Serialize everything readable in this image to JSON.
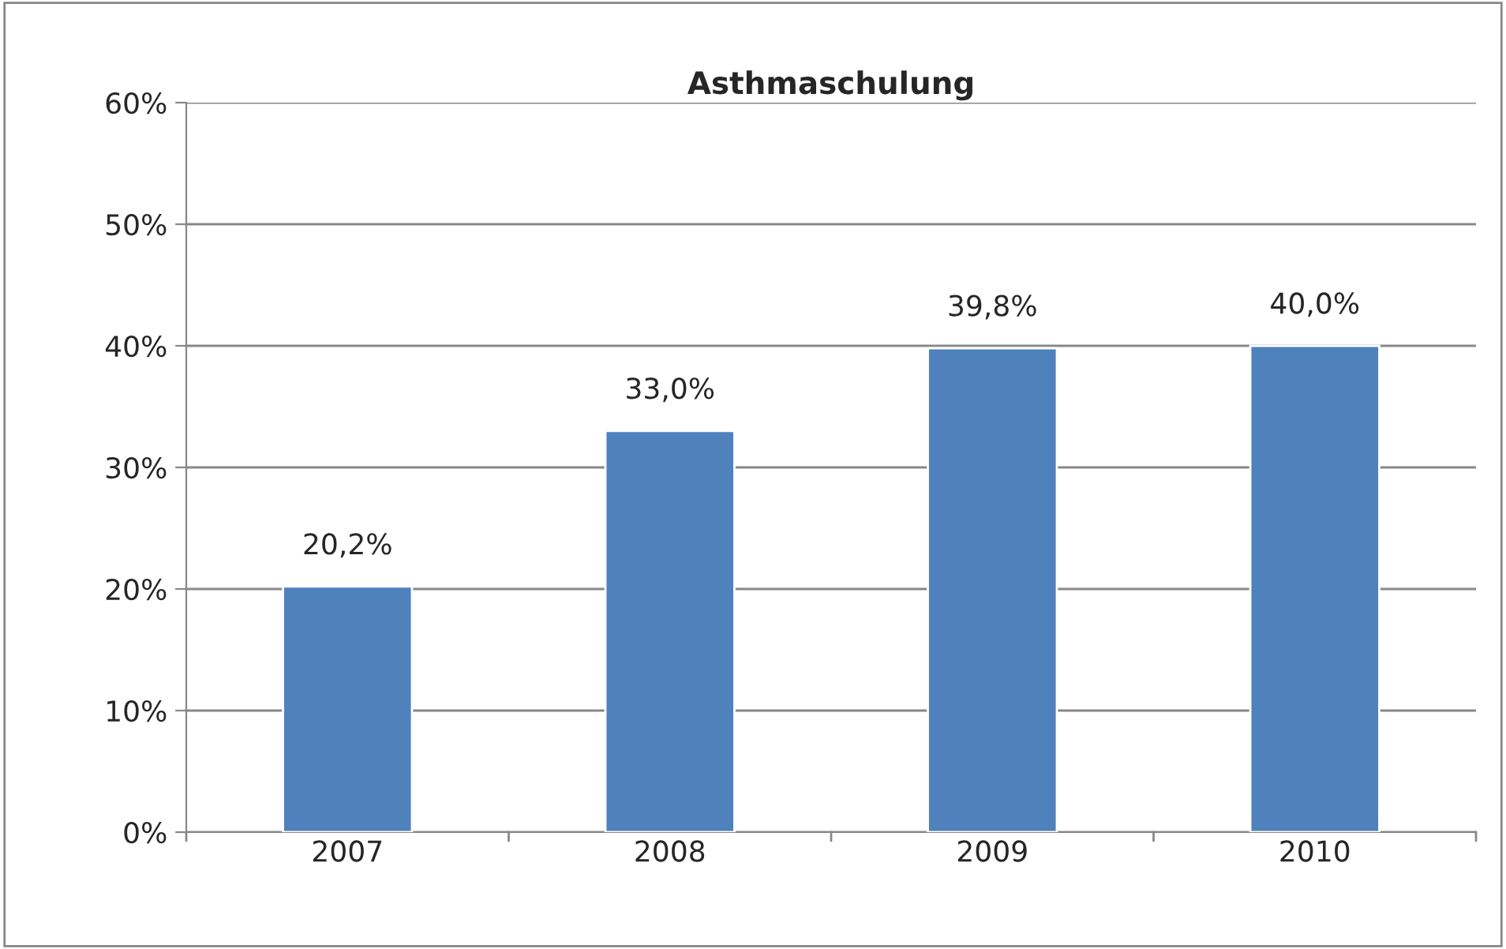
{
  "chart_data": {
    "type": "bar",
    "title": "Asthmaschulung",
    "categories": [
      "2007",
      "2008",
      "2009",
      "2010"
    ],
    "values": [
      20.2,
      33.0,
      39.8,
      40.0
    ],
    "value_labels": [
      "20,2%",
      "33,0%",
      "39,8%",
      "40,0%"
    ],
    "color": "#4f81bd",
    "ylim": [
      0,
      60
    ],
    "yticks": [
      {
        "value": 0,
        "label": "0%"
      },
      {
        "value": 10,
        "label": "10%"
      },
      {
        "value": 20,
        "label": "20%"
      },
      {
        "value": 30,
        "label": "30%"
      },
      {
        "value": 40,
        "label": "40%"
      },
      {
        "value": 50,
        "label": "50%"
      },
      {
        "value": 60,
        "label": "60%"
      }
    ],
    "grid": "y",
    "legend": false
  }
}
